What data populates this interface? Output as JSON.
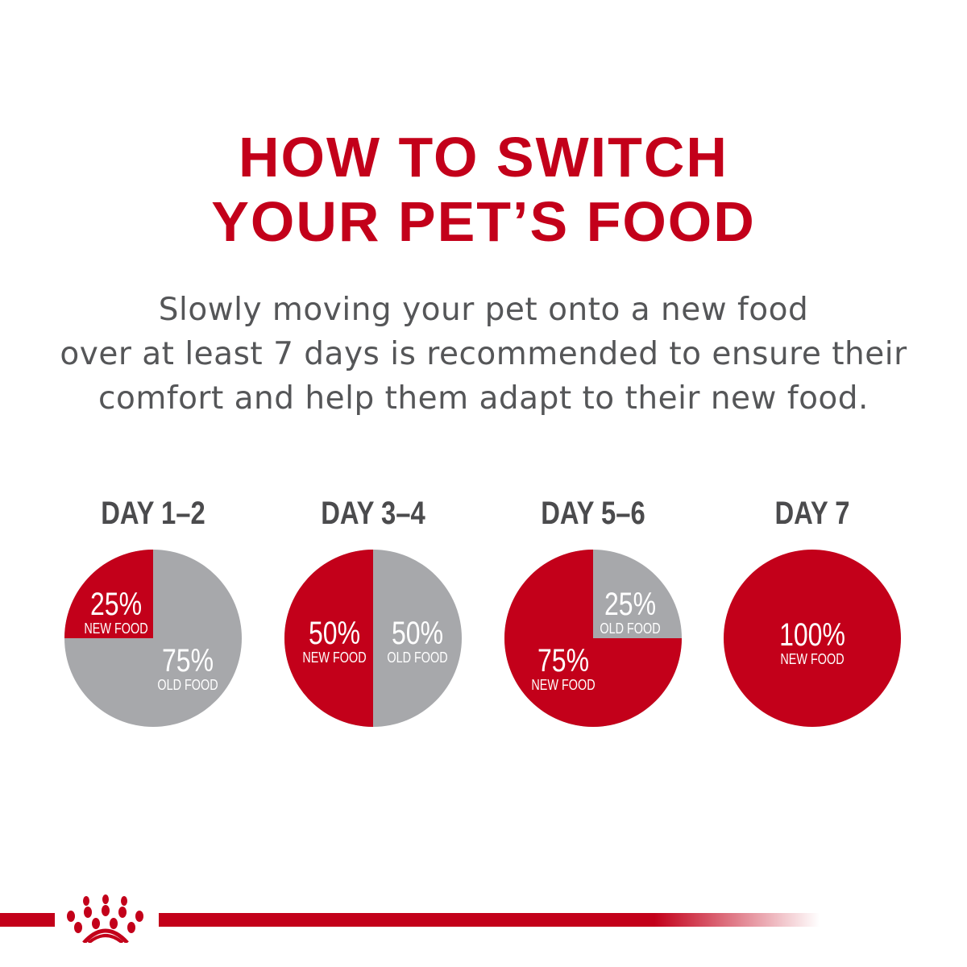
{
  "title_lines": [
    "HOW TO SWITCH",
    "YOUR PET’S FOOD"
  ],
  "subtitle_lines": [
    "Slowly moving your pet onto a new food",
    "over at least 7 days is recommended to ensure their",
    "comfort and help them adapt to their new food."
  ],
  "colors": {
    "brand_red": "#c3001a",
    "gray": "#a7a8ab",
    "text_gray": "#555658"
  },
  "logo": "royal-canin-crown-logo",
  "chart_data": {
    "type": "pie",
    "charts": [
      {
        "title": "DAY 1–2",
        "slices": [
          {
            "label": "NEW FOOD",
            "value": 25,
            "text": "25%"
          },
          {
            "label": "OLD FOOD",
            "value": 75,
            "text": "75%"
          }
        ]
      },
      {
        "title": "DAY 3–4",
        "slices": [
          {
            "label": "NEW FOOD",
            "value": 50,
            "text": "50%"
          },
          {
            "label": "OLD FOOD",
            "value": 50,
            "text": "50%"
          }
        ]
      },
      {
        "title": "DAY 5–6",
        "slices": [
          {
            "label": "NEW FOOD",
            "value": 75,
            "text": "75%"
          },
          {
            "label": "OLD FOOD",
            "value": 25,
            "text": "25%"
          }
        ]
      },
      {
        "title": "DAY 7",
        "slices": [
          {
            "label": "NEW FOOD",
            "value": 100,
            "text": "100%"
          }
        ]
      }
    ]
  }
}
